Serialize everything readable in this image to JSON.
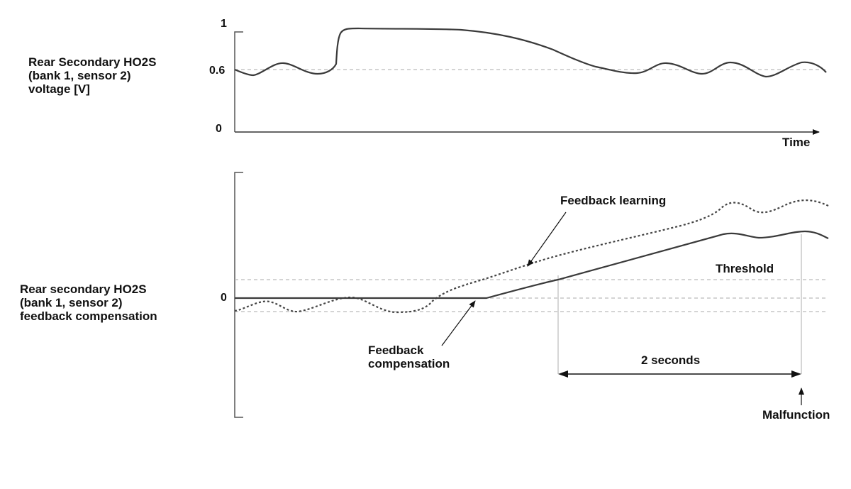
{
  "top_panel": {
    "label_lines": [
      "Rear Secondary HO2S",
      "(bank 1, sensor 2)",
      "voltage [V]"
    ],
    "tick_1": "1",
    "tick_06": "0.6",
    "tick_0": "0",
    "time_label": "Time"
  },
  "bottom_panel": {
    "label_lines": [
      "Rear secondary HO2S",
      "(bank 1, sensor 2)",
      "feedback compensation"
    ],
    "tick_0": "0",
    "feedback_learning_label": "Feedback learning",
    "threshold_label": "Threshold",
    "feedback_compensation_lines": [
      "Feedback",
      "compensation"
    ],
    "duration_label": "2 seconds",
    "malfunction_label": "Malfunction"
  },
  "colors": {
    "trace": "#3a3a3a",
    "guide": "#bbbbbb",
    "text": "#111111"
  }
}
